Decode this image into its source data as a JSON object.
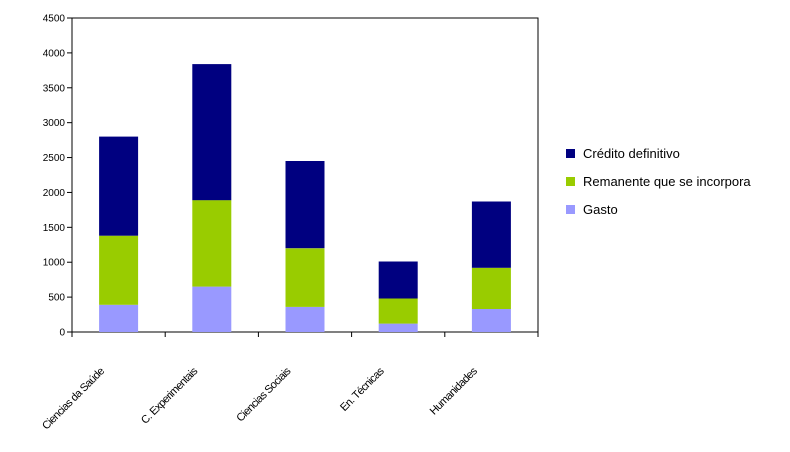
{
  "chart_data": {
    "type": "bar",
    "stacked": true,
    "categories": [
      "Ciencias da Saúde",
      "C. Experimentais",
      "Ciencias Sociais",
      "En. Técnicas",
      "Humanidades"
    ],
    "series": [
      {
        "name": "Gasto",
        "color": "#9999ff",
        "values": [
          390,
          650,
          360,
          120,
          330
        ]
      },
      {
        "name": "Remanente que se incorpora",
        "color": "#99cc00",
        "values": [
          990,
          1240,
          840,
          360,
          590
        ]
      },
      {
        "name": "Crédito definitivo",
        "color": "#000080",
        "values": [
          1420,
          1950,
          1250,
          530,
          950
        ]
      }
    ],
    "ylim": [
      0,
      4500
    ],
    "yticks": [
      0,
      500,
      1000,
      1500,
      2000,
      2500,
      3000,
      3500,
      4000,
      4500
    ],
    "legend_position": "right",
    "grid": false,
    "title": "",
    "xlabel": "",
    "ylabel": ""
  },
  "legend": {
    "items": [
      {
        "label": "Crédito definitivo",
        "color": "#000080"
      },
      {
        "label": "Remanente que se incorpora",
        "color": "#99cc00"
      },
      {
        "label": "Gasto",
        "color": "#9999ff"
      }
    ]
  }
}
